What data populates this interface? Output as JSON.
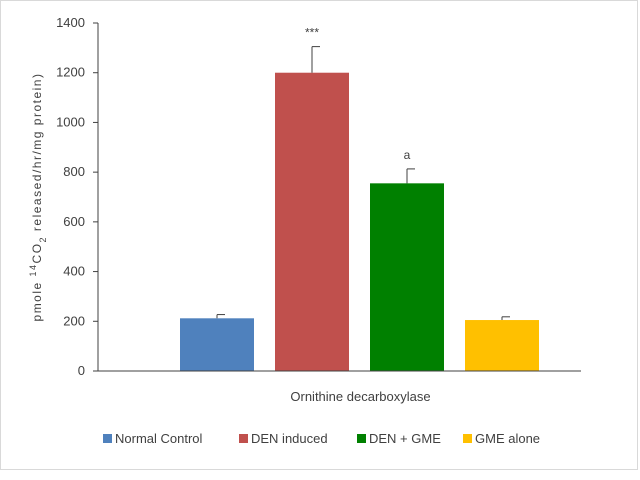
{
  "chart_data": {
    "type": "bar",
    "categories": [
      "Ornithine decarboxylase"
    ],
    "series": [
      {
        "name": "Normal Control",
        "values": [
          212
        ],
        "error": [
          15
        ],
        "annotation": "",
        "color": "#4f81bd"
      },
      {
        "name": "DEN induced",
        "values": [
          1200
        ],
        "error": [
          105
        ],
        "annotation": "***",
        "color": "#c0504d"
      },
      {
        "name": "DEN + GME",
        "values": [
          755
        ],
        "error": [
          58
        ],
        "annotation": "a",
        "color": "#008000"
      },
      {
        "name": "GME alone",
        "values": [
          205
        ],
        "error": [
          13
        ],
        "annotation": "",
        "color": "#ffc000"
      }
    ],
    "xlabel": "Ornithine decarboxylase",
    "ylabel": "pmole 14CO2 released/hr/mg protein)",
    "ylabel_prefix": "pmole ",
    "ylabel_sup": "14",
    "ylabel_mid": "CO",
    "ylabel_sub": "2",
    "ylabel_suffix": " released/hr/mg protein)",
    "ylim": [
      0,
      1400
    ],
    "yticks": [
      0,
      200,
      400,
      600,
      800,
      1000,
      1200,
      1400
    ],
    "grid": false,
    "legend_position": "bottom"
  }
}
